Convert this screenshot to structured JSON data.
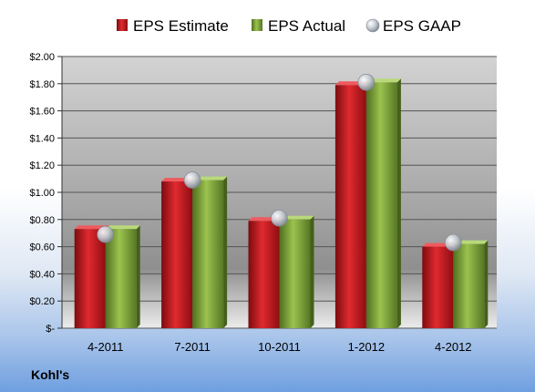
{
  "company": "Kohl's",
  "colors": {
    "estimate": "#c0161c",
    "actual": "#7ea33a",
    "gaap": "#b8bec8",
    "plot_top": "#d2d2d2",
    "plot_mid": "#9a9a9a",
    "plot_bottom": "#e6e6e6",
    "grid": "#555555"
  },
  "chart_data": {
    "type": "bar",
    "categories": [
      "4-2011",
      "7-2011",
      "10-2011",
      "1-2012",
      "4-2012"
    ],
    "series": [
      {
        "name": "EPS Estimate",
        "kind": "bar",
        "values": [
          0.73,
          1.08,
          0.79,
          1.79,
          0.6
        ]
      },
      {
        "name": "EPS Actual",
        "kind": "bar",
        "values": [
          0.73,
          1.09,
          0.8,
          1.81,
          0.62
        ]
      },
      {
        "name": "EPS GAAP",
        "kind": "marker",
        "values": [
          0.69,
          1.09,
          0.81,
          1.81,
          0.63
        ]
      }
    ],
    "ylim": [
      0,
      2.0
    ],
    "yticks": [
      {
        "value": 2.0,
        "label": "$2.00"
      },
      {
        "value": 1.8,
        "label": "$1.80"
      },
      {
        "value": 1.6,
        "label": "$1.60"
      },
      {
        "value": 1.4,
        "label": "$1.40"
      },
      {
        "value": 1.2,
        "label": "$1.20"
      },
      {
        "value": 1.0,
        "label": "$1.00"
      },
      {
        "value": 0.8,
        "label": "$0.80"
      },
      {
        "value": 0.6,
        "label": "$0.60"
      },
      {
        "value": 0.4,
        "label": "$0.40"
      },
      {
        "value": 0.2,
        "label": "$0.20"
      },
      {
        "value": 0.0,
        "label": "$-"
      }
    ],
    "grid": true,
    "legend_position": "top"
  }
}
